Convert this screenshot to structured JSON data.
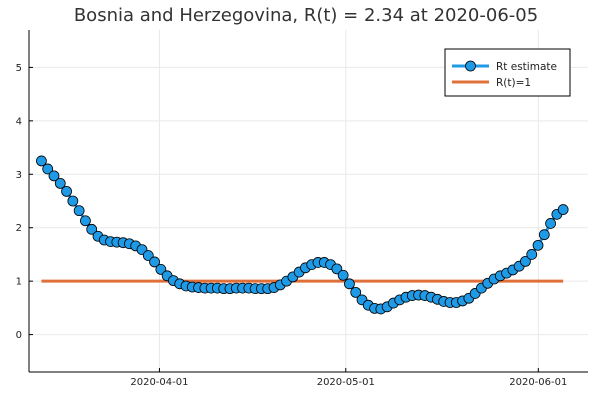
{
  "chart_data": {
    "type": "line",
    "title": "Bosnia and Herzegovina, R(t) = 2.34 at 2020-06-05",
    "xlabel": "",
    "ylabel": "",
    "xlim": [
      "2020-03-11",
      "2020-06-09"
    ],
    "ylim": [
      -0.7,
      5.7
    ],
    "x_ticks": [
      "2020-04-01",
      "2020-05-01",
      "2020-06-01"
    ],
    "y_ticks": [
      0,
      1,
      2,
      3,
      4,
      5
    ],
    "grid": true,
    "legend_position": "top-right",
    "series": [
      {
        "name": "Rt estimate",
        "color": "#1f9ae6",
        "marker": "circle",
        "x_start": "2020-03-13",
        "x_end": "2020-06-05",
        "values": [
          3.25,
          3.1,
          2.97,
          2.83,
          2.68,
          2.5,
          2.32,
          2.13,
          1.97,
          1.84,
          1.77,
          1.74,
          1.73,
          1.72,
          1.7,
          1.66,
          1.59,
          1.48,
          1.36,
          1.22,
          1.1,
          1.01,
          0.95,
          0.91,
          0.89,
          0.88,
          0.87,
          0.87,
          0.87,
          0.86,
          0.86,
          0.87,
          0.87,
          0.87,
          0.86,
          0.86,
          0.86,
          0.88,
          0.93,
          1.0,
          1.08,
          1.17,
          1.25,
          1.31,
          1.35,
          1.35,
          1.31,
          1.23,
          1.11,
          0.95,
          0.79,
          0.65,
          0.55,
          0.49,
          0.48,
          0.52,
          0.59,
          0.65,
          0.7,
          0.73,
          0.74,
          0.73,
          0.7,
          0.66,
          0.62,
          0.6,
          0.6,
          0.63,
          0.68,
          0.77,
          0.87,
          0.96,
          1.04,
          1.1,
          1.15,
          1.21,
          1.28,
          1.37,
          1.5,
          1.67,
          1.87,
          2.08,
          2.25,
          2.34
        ]
      },
      {
        "name": "R(t)=1",
        "color": "#e0703a",
        "marker": "none",
        "x_start": "2020-03-13",
        "x_end": "2020-06-05",
        "values": [
          1,
          1
        ]
      }
    ]
  }
}
